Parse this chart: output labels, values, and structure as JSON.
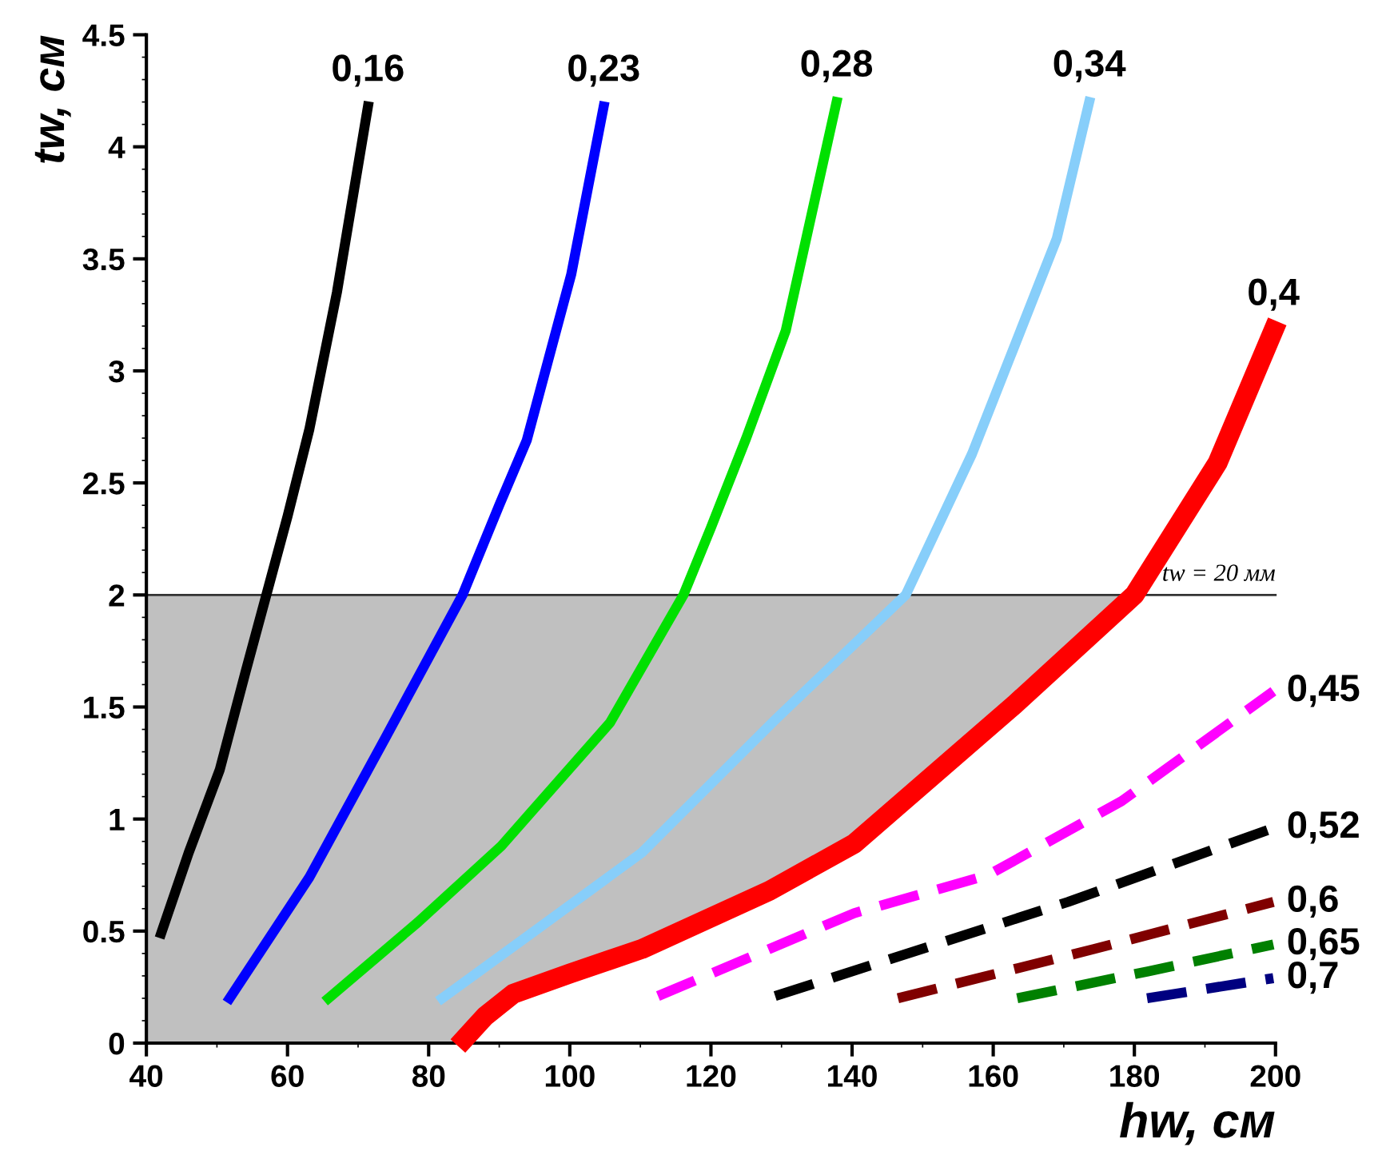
{
  "chart_data": {
    "type": "line",
    "xlabel": "hw, см",
    "ylabel": "tw, см",
    "xlim": [
      40,
      200
    ],
    "ylim": [
      0,
      4.5
    ],
    "xticks": [
      40,
      60,
      80,
      100,
      120,
      140,
      160,
      180,
      200
    ],
    "yticks": [
      0,
      0.5,
      1,
      1.5,
      2,
      2.5,
      3,
      3.5,
      4,
      4.5
    ],
    "grid": false,
    "legend": false,
    "marker": "none",
    "ref_lines": [
      {
        "axis": "y",
        "value": 2,
        "color": "#333333",
        "line_style": "solid"
      }
    ],
    "annotations": [
      "tw = 20 мм"
    ],
    "bands": [
      {
        "axis": "y",
        "from": 0,
        "to": 2,
        "color": "#c0c0c0"
      }
    ],
    "series": [
      {
        "name": "0,16",
        "color": "#000000",
        "line_style": "solid",
        "x": [
          42.1,
          46,
          50.4,
          54,
          57,
          60,
          63.1,
          67,
          71.4
        ],
        "values": [
          0.49,
          0.85,
          1.22,
          1.65,
          2.0,
          2.35,
          2.74,
          3.35,
          4.18
        ]
      },
      {
        "name": "0,23",
        "color": "#0000ff",
        "line_style": "solid",
        "x": [
          51.8,
          63.1,
          74,
          84.8,
          90,
          93.9,
          100.2,
          104.8
        ],
        "values": [
          0.2,
          0.74,
          1.37,
          2.0,
          2.4,
          2.69,
          3.43,
          4.18
        ]
      },
      {
        "name": "0,28",
        "color": "#00e000",
        "line_style": "solid",
        "x": [
          65.8,
          78.5,
          90.3,
          105.7,
          116.1,
          120,
          125,
          130.6,
          137.8
        ],
        "values": [
          0.2,
          0.54,
          0.88,
          1.43,
          2.0,
          2.3,
          2.7,
          3.18,
          4.2
        ]
      },
      {
        "name": "0,34",
        "color": "#87cefa",
        "line_style": "solid",
        "x": [
          81.9,
          95,
          110.2,
          129,
          147.6,
          157,
          169,
          173.6
        ],
        "values": [
          0.2,
          0.5,
          0.85,
          1.44,
          2.0,
          2.63,
          3.59,
          4.2
        ]
      },
      {
        "name": "0,4",
        "color": "#ff0000",
        "line_style": "solid",
        "x": [
          85.1,
          88,
          92,
          100,
          110.2,
          128.3,
          140.3,
          163,
          180,
          191.8,
          199.7
        ],
        "values": [
          0.02,
          0.12,
          0.22,
          0.31,
          0.42,
          0.68,
          0.89,
          1.51,
          2.0,
          2.59,
          3.18
        ]
      },
      {
        "name": "0,45",
        "color": "#ff00ff",
        "line_style": "dashed",
        "x": [
          112.5,
          140.3,
          159.3,
          178.2,
          199.7
        ],
        "values": [
          0.21,
          0.58,
          0.75,
          1.08,
          1.57
        ]
      },
      {
        "name": "0,52",
        "color": "#000000",
        "line_style": "dashed",
        "x": [
          129.1,
          170.6,
          199.7
        ],
        "values": [
          0.21,
          0.63,
          0.96
        ]
      },
      {
        "name": "0,6",
        "color": "#800000",
        "line_style": "dashed",
        "x": [
          146.5,
          174.3,
          199.7
        ],
        "values": [
          0.2,
          0.42,
          0.63
        ]
      },
      {
        "name": "0,65",
        "color": "#008000",
        "line_style": "dashed",
        "x": [
          163.4,
          181.9,
          199.7
        ],
        "values": [
          0.2,
          0.32,
          0.44
        ]
      },
      {
        "name": "0,7",
        "color": "#000080",
        "line_style": "dashed",
        "x": [
          181.8,
          199.7
        ],
        "values": [
          0.2,
          0.29
        ]
      }
    ]
  }
}
